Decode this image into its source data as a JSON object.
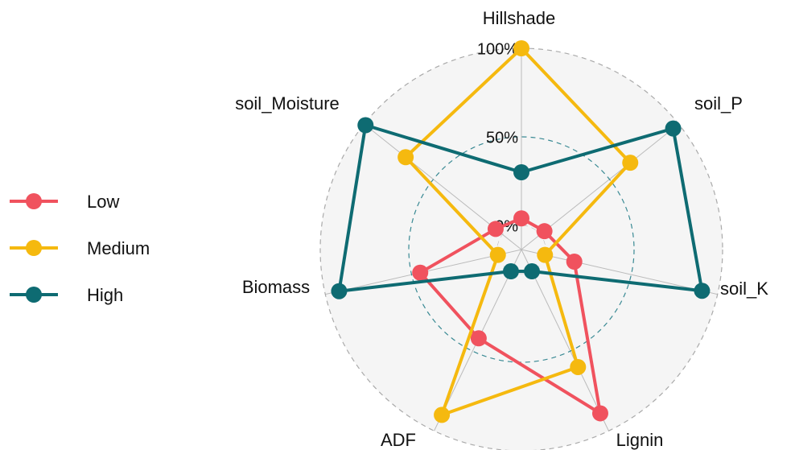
{
  "chart_data": {
    "type": "radar",
    "categories": [
      "Hillshade",
      "soil_P",
      "soil_K",
      "Lignin",
      "ADF",
      "Biomass",
      "soil_Moisture"
    ],
    "series": [
      {
        "name": "Low",
        "color": "#f0525e",
        "values": [
          4,
          3,
          17,
          89,
          42,
          45,
          5
        ]
      },
      {
        "name": "Medium",
        "color": "#f5b90f",
        "values": [
          100,
          65,
          0,
          60,
          90,
          0,
          70
        ]
      },
      {
        "name": "High",
        "color": "#0e6b72",
        "values": [
          30,
          96,
          91,
          0,
          0,
          92,
          99
        ]
      }
    ],
    "ylim": [
      0,
      100
    ],
    "yticks": [
      {
        "value": 0,
        "label": "0%"
      },
      {
        "value": 50,
        "label": "50%"
      },
      {
        "value": 100,
        "label": "100%"
      }
    ],
    "legend": "left"
  }
}
